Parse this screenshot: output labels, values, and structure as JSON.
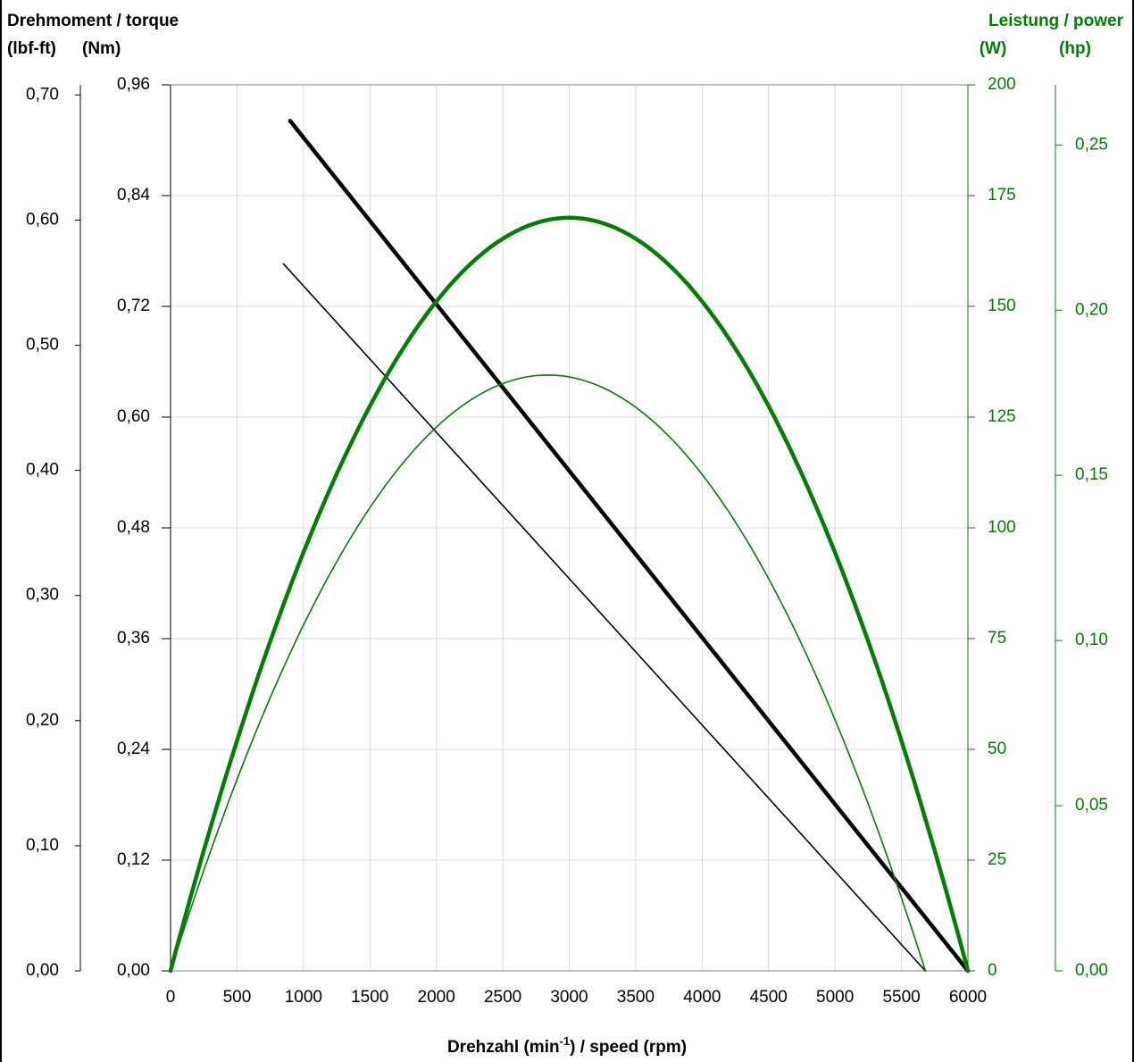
{
  "chart_data": {
    "type": "line",
    "header": {
      "left_title": "Drehmoment / torque",
      "left_unit_lbfft": "(lbf-ft)",
      "left_unit_nm": "(Nm)",
      "right_title": "Leistung / power",
      "right_unit_w": "(W)",
      "right_unit_hp": "(hp)"
    },
    "xlabel": {
      "pre": "Drehzahl (min",
      "sup": "-1",
      "post": ") / speed (rpm)"
    },
    "x_range": [
      0,
      6000
    ],
    "x_ticks": [
      "0",
      "500",
      "1000",
      "1500",
      "2000",
      "2500",
      "3000",
      "3500",
      "4000",
      "4500",
      "5000",
      "5500",
      "6000"
    ],
    "x_tick_values": [
      0,
      500,
      1000,
      1500,
      2000,
      2500,
      3000,
      3500,
      4000,
      4500,
      5000,
      5500,
      6000
    ],
    "nm_range": [
      0,
      0.96
    ],
    "nm_ticks": [
      "0,00",
      "0,12",
      "0,24",
      "0,36",
      "0,48",
      "0,60",
      "0,72",
      "0,84",
      "0,96"
    ],
    "nm_tick_values": [
      0,
      0.12,
      0.24,
      0.36,
      0.48,
      0.6,
      0.72,
      0.84,
      0.96
    ],
    "lbfft_ticks": [
      "0,00",
      "0,10",
      "0,20",
      "0,30",
      "0,40",
      "0,50",
      "0,60",
      "0,70"
    ],
    "lbfft_tick_values": [
      0,
      0.1,
      0.2,
      0.3,
      0.4,
      0.5,
      0.6,
      0.7
    ],
    "w_range": [
      0,
      200
    ],
    "w_ticks": [
      "0",
      "25",
      "50",
      "75",
      "100",
      "125",
      "150",
      "175",
      "200"
    ],
    "w_tick_values": [
      0,
      25,
      50,
      75,
      100,
      125,
      150,
      175,
      200
    ],
    "hp_ticks": [
      "0,00",
      "0,05",
      "0,10",
      "0,15",
      "0,20",
      "0,25"
    ],
    "hp_tick_values": [
      0,
      0.05,
      0.1,
      0.15,
      0.2,
      0.25
    ],
    "grid": true,
    "colors": {
      "torque": "#000000",
      "power": "#008000",
      "grid": "#d9d9d9"
    },
    "series": [
      {
        "kind": "torque",
        "width": "thick",
        "x": [
          900,
          6000
        ],
        "y_nm": [
          0.921,
          0
        ]
      },
      {
        "kind": "torque",
        "width": "thin",
        "x": [
          850,
          5680
        ],
        "y_nm": [
          0.766,
          0
        ]
      },
      {
        "kind": "power",
        "width": "thick",
        "no_load_speed": 6000,
        "peak_speed": 3000,
        "peak_w": 170
      },
      {
        "kind": "power",
        "width": "thin",
        "no_load_speed": 5680,
        "peak_speed": 2840,
        "peak_w": 134.5
      }
    ]
  }
}
